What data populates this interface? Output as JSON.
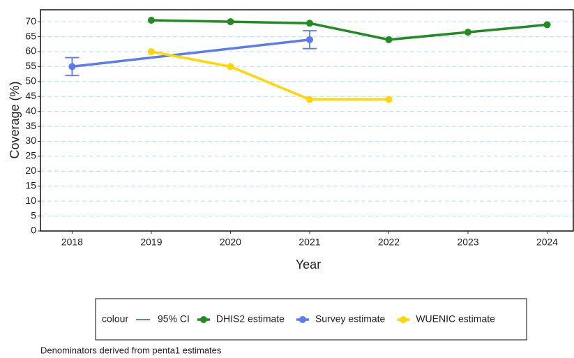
{
  "chart_data": {
    "type": "line",
    "x_label": "Year",
    "y_label": "Coverage (%)",
    "xlim": [
      2017.6,
      2024.33
    ],
    "xticks": [
      2018,
      2019,
      2020,
      2021,
      2022,
      2023,
      2024
    ],
    "ylim": [
      0,
      74
    ],
    "yticks": [
      0,
      5,
      10,
      15,
      20,
      25,
      30,
      35,
      40,
      45,
      50,
      55,
      60,
      65,
      70
    ],
    "grid": true,
    "legend_title": "colour",
    "legend_position": "bottom",
    "series": [
      {
        "name": "DHIS2 estimate",
        "color": "#228b22",
        "x": [
          2019,
          2020,
          2021,
          2022,
          2023,
          2024
        ],
        "values": [
          70.5,
          70,
          69.5,
          64,
          66.5,
          69
        ]
      },
      {
        "name": "Survey estimate",
        "color": "#5b7cf0",
        "x": [
          2018,
          2021
        ],
        "values": [
          55,
          64
        ],
        "error_bars": {
          "name": "95% CI",
          "lower": [
            52,
            61
          ],
          "upper": [
            58,
            67
          ]
        }
      },
      {
        "name": "WUENIC estimate",
        "color": "#ffd700",
        "x": [
          2019,
          2020,
          2021,
          2022
        ],
        "values": [
          60,
          55,
          44,
          44
        ]
      }
    ],
    "caption": "Denominators derived from penta1 estimates"
  }
}
